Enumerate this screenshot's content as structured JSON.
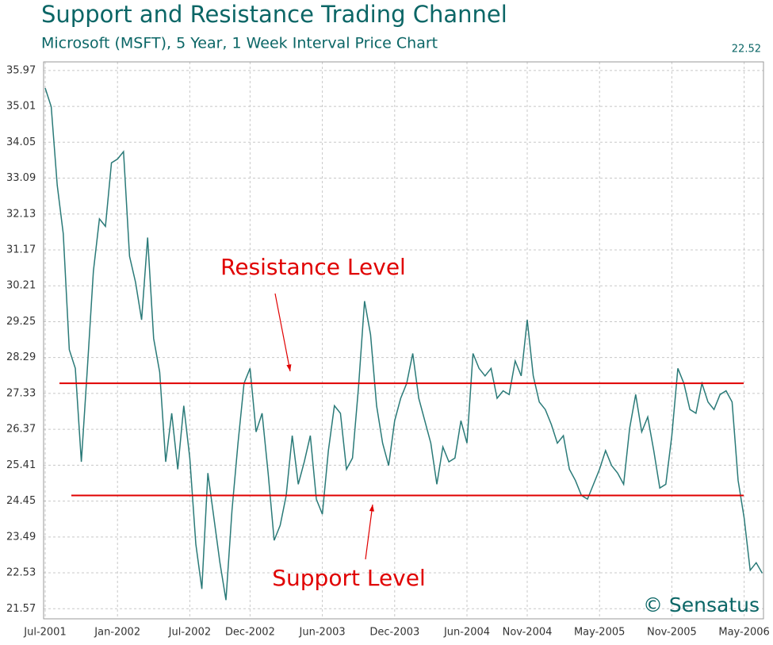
{
  "chart_data": {
    "type": "line",
    "title": "Support and Resistance Trading Channel",
    "subtitle": "Microsoft (MSFT), 5 Year, 1 Week Interval Price Chart",
    "credit": "© Sensatus",
    "categories": [
      "Jul-2001",
      null,
      null,
      null,
      null,
      null,
      null,
      null,
      null,
      null,
      null,
      null,
      "Jan-2002",
      null,
      null,
      null,
      null,
      null,
      null,
      null,
      null,
      null,
      null,
      null,
      "Jul-2002",
      null,
      null,
      null,
      null,
      null,
      null,
      null,
      null,
      null,
      "Dec-2002",
      null,
      null,
      null,
      null,
      null,
      null,
      null,
      null,
      null,
      null,
      null,
      "Jun-2003",
      null,
      null,
      null,
      null,
      null,
      null,
      null,
      null,
      null,
      null,
      null,
      "Dec-2003",
      null,
      null,
      null,
      null,
      null,
      null,
      null,
      null,
      null,
      null,
      null,
      "Jun-2004",
      null,
      null,
      null,
      null,
      null,
      null,
      null,
      null,
      null,
      "Nov-2004",
      null,
      null,
      null,
      null,
      null,
      null,
      null,
      null,
      null,
      null,
      null,
      "May-2005",
      null,
      null,
      null,
      null,
      null,
      null,
      null,
      null,
      null,
      null,
      null,
      "Nov-2005",
      null,
      null,
      null,
      null,
      null,
      null,
      null,
      null,
      null,
      null,
      null,
      "May-2006",
      null,
      null,
      null
    ],
    "color": "#2a7a78",
    "values": [
      35.5,
      35.0,
      32.9,
      31.6,
      28.5,
      28.0,
      25.5,
      28.0,
      30.6,
      32.0,
      31.8,
      33.5,
      33.6,
      33.8,
      31.0,
      30.3,
      29.3,
      31.5,
      28.8,
      27.9,
      25.5,
      26.8,
      25.3,
      27.0,
      25.6,
      23.3,
      22.1,
      25.2,
      24.0,
      22.8,
      21.8,
      24.2,
      26.0,
      27.6,
      28.0,
      26.3,
      26.8,
      25.2,
      23.4,
      23.8,
      24.6,
      26.2,
      24.9,
      25.5,
      26.2,
      24.5,
      24.1,
      25.8,
      27.0,
      26.8,
      25.3,
      25.6,
      27.5,
      29.8,
      28.9,
      27.0,
      26.0,
      25.4,
      26.6,
      27.2,
      27.6,
      28.4,
      27.2,
      26.6,
      26.0,
      24.9,
      25.9,
      25.5,
      25.6,
      26.6,
      26.0,
      28.4,
      28.0,
      27.8,
      28.0,
      27.2,
      27.4,
      27.3,
      28.2,
      27.8,
      29.3,
      27.8,
      27.1,
      26.9,
      26.5,
      26.0,
      26.2,
      25.3,
      25.0,
      24.6,
      24.5,
      24.9,
      25.3,
      25.8,
      25.4,
      25.2,
      24.9,
      26.4,
      27.3,
      26.3,
      26.7,
      25.8,
      24.8,
      24.9,
      26.2,
      28.0,
      27.6,
      26.9,
      26.8,
      27.6,
      27.1,
      26.9,
      27.3,
      27.4,
      27.1,
      25.0,
      24.0,
      22.6,
      22.8,
      22.52
    ],
    "ylim": [
      21.3,
      36.2
    ],
    "yticks": [
      35.97,
      35.01,
      34.05,
      33.09,
      32.13,
      31.17,
      30.21,
      29.25,
      28.29,
      27.33,
      26.37,
      25.41,
      24.45,
      23.49,
      22.53,
      21.57
    ],
    "grid": true,
    "levels": [
      {
        "label": "Resistance Level",
        "value": 27.6,
        "color": "#e00000"
      },
      {
        "label": "Support Level",
        "value": 24.6,
        "color": "#e00000"
      }
    ]
  }
}
